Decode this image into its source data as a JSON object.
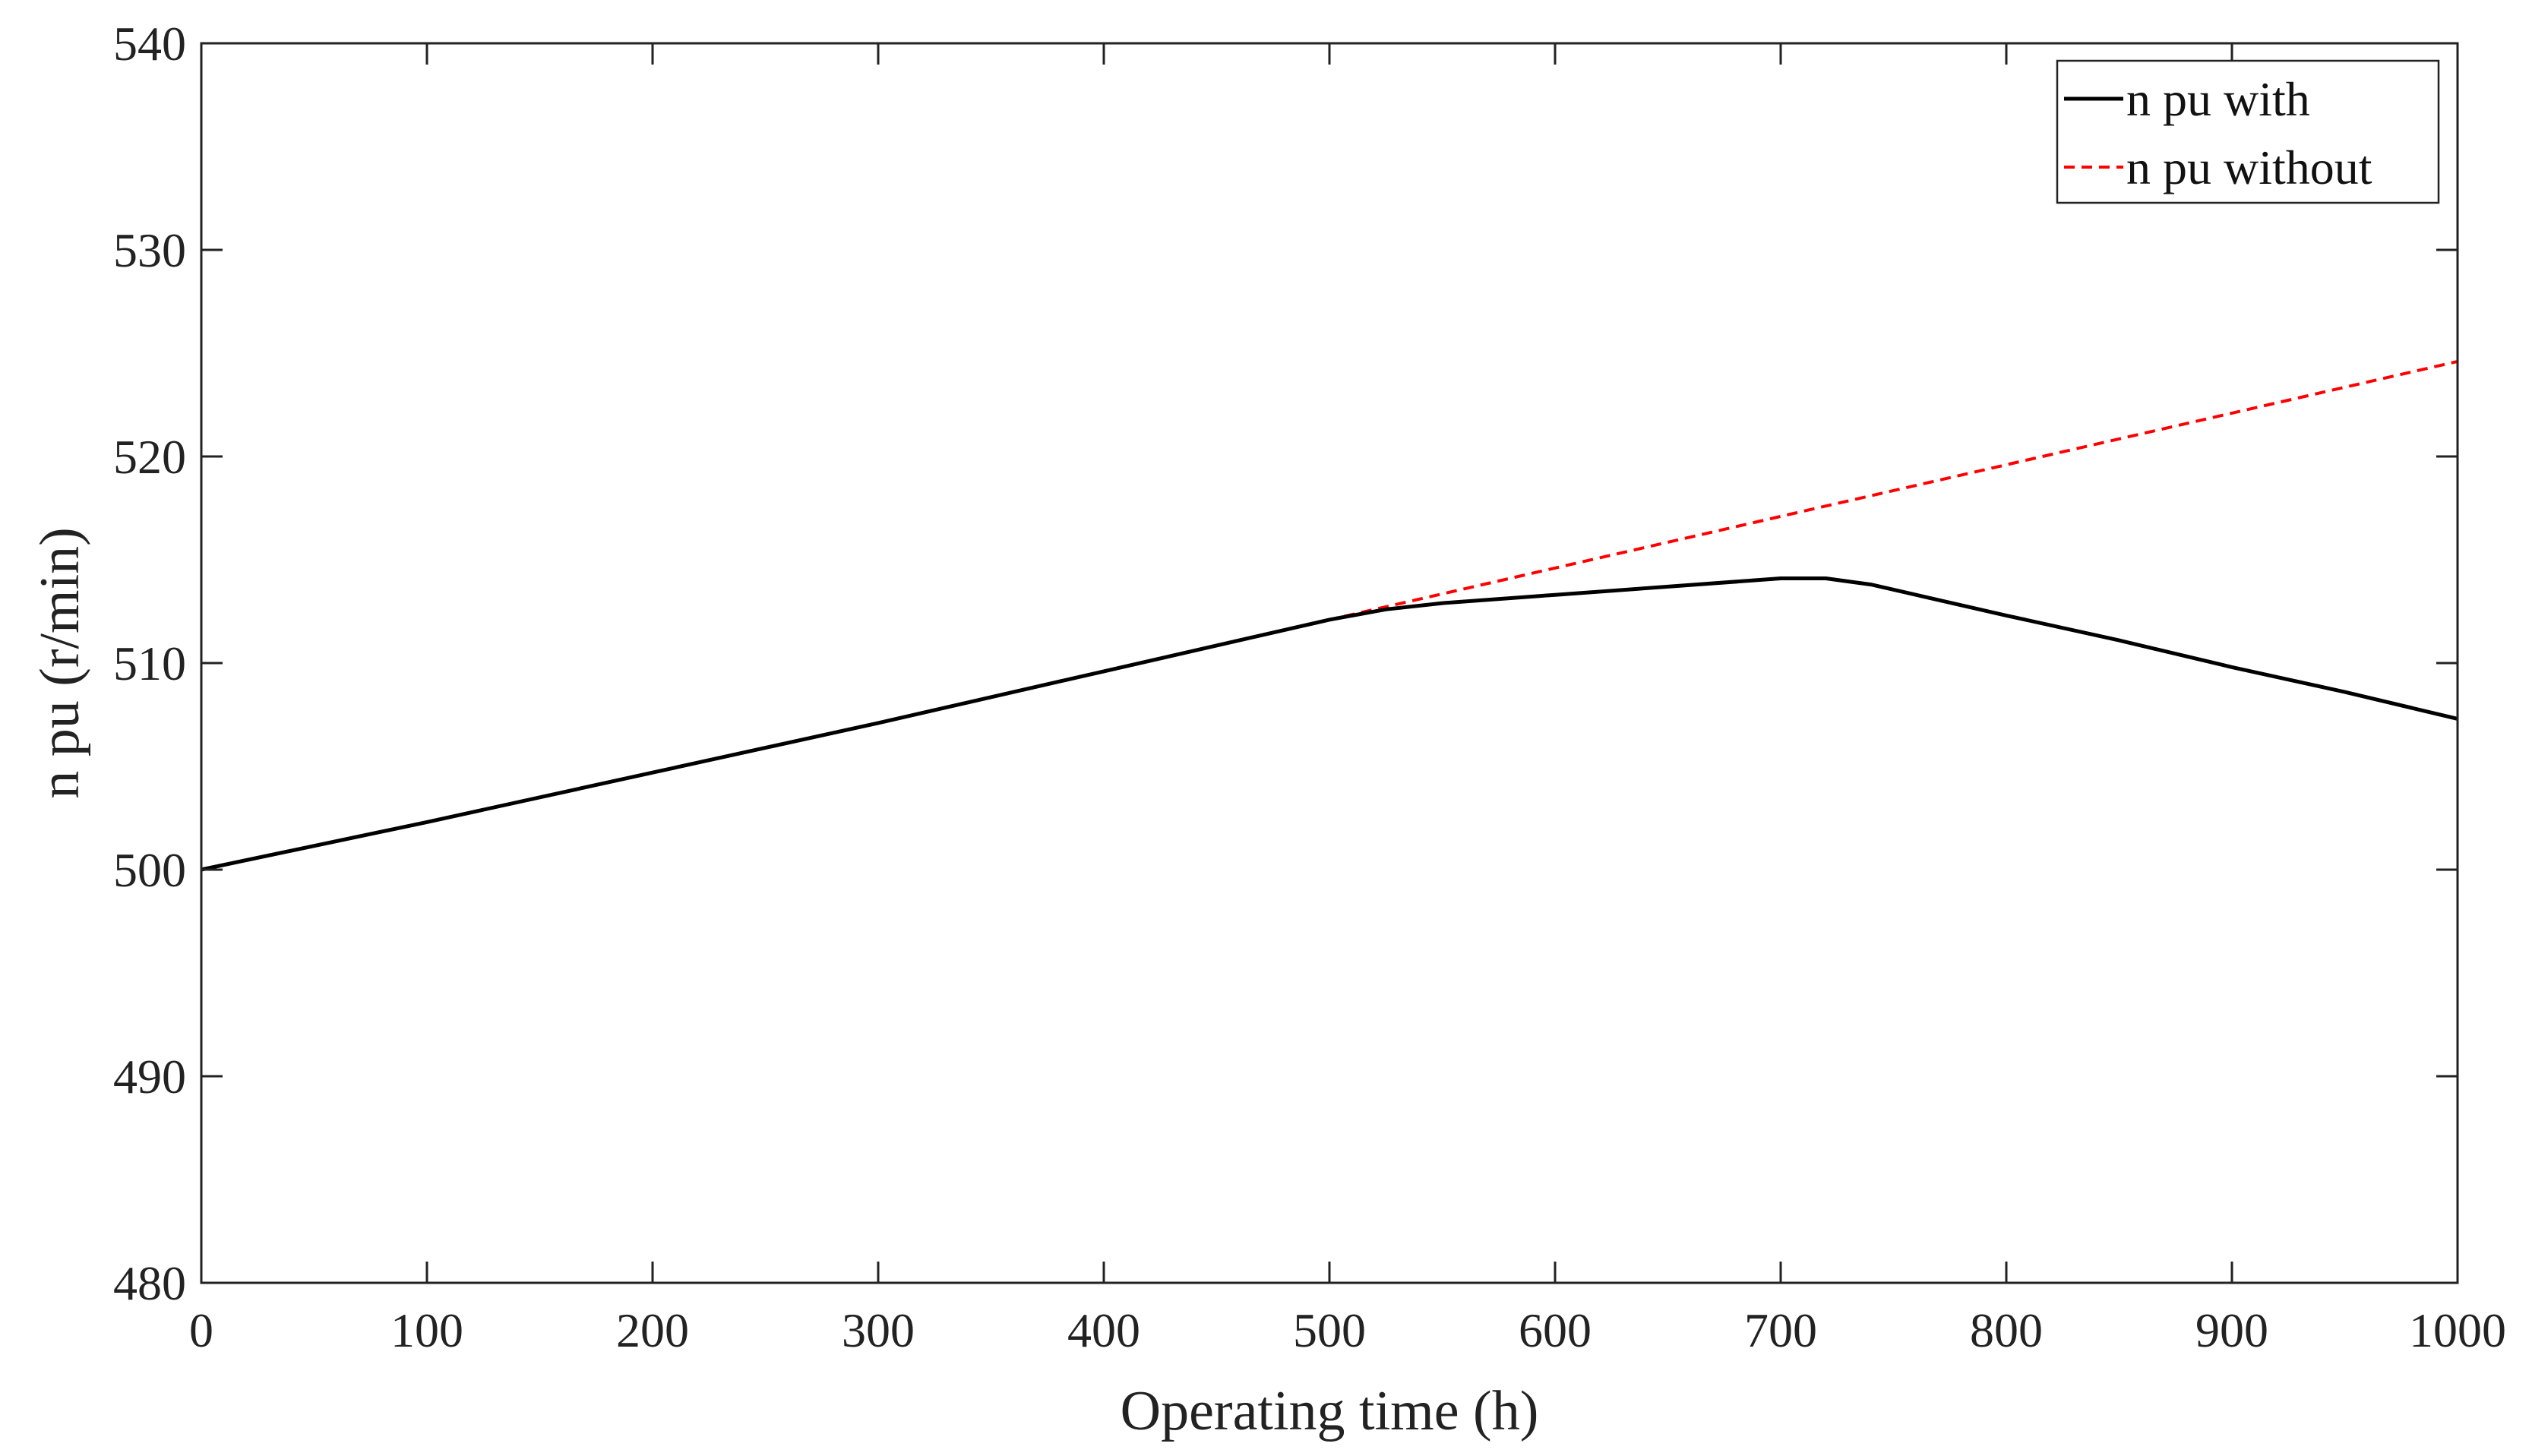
{
  "chart_data": {
    "type": "line",
    "xlabel": "Operating time (h)",
    "ylabel": "n pu (r/min)",
    "xlim": [
      0,
      1000
    ],
    "ylim": [
      480,
      540
    ],
    "xticks": [
      0,
      100,
      200,
      300,
      400,
      500,
      600,
      700,
      800,
      900,
      1000
    ],
    "yticks": [
      480,
      490,
      500,
      510,
      520,
      530,
      540
    ],
    "grid": false,
    "legend_position": "top-right",
    "series": [
      {
        "name": "n pu with",
        "color": "#000000",
        "style": "solid",
        "x": [
          0,
          100,
          200,
          300,
          400,
          500,
          525,
          550,
          600,
          650,
          700,
          720,
          740,
          760,
          800,
          850,
          900,
          950,
          1000
        ],
        "y": [
          500.0,
          502.3,
          504.7,
          507.1,
          509.6,
          512.1,
          512.6,
          512.9,
          513.3,
          513.7,
          514.1,
          514.1,
          513.8,
          513.3,
          512.3,
          511.1,
          509.8,
          508.6,
          507.3
        ]
      },
      {
        "name": "n pu without",
        "color": "#ff0000",
        "style": "dashed",
        "x": [
          0,
          100,
          200,
          300,
          400,
          500,
          600,
          700,
          800,
          900,
          1000
        ],
        "y": [
          500.0,
          502.3,
          504.7,
          507.1,
          509.6,
          512.1,
          514.6,
          517.1,
          519.6,
          522.1,
          524.6
        ]
      }
    ]
  }
}
